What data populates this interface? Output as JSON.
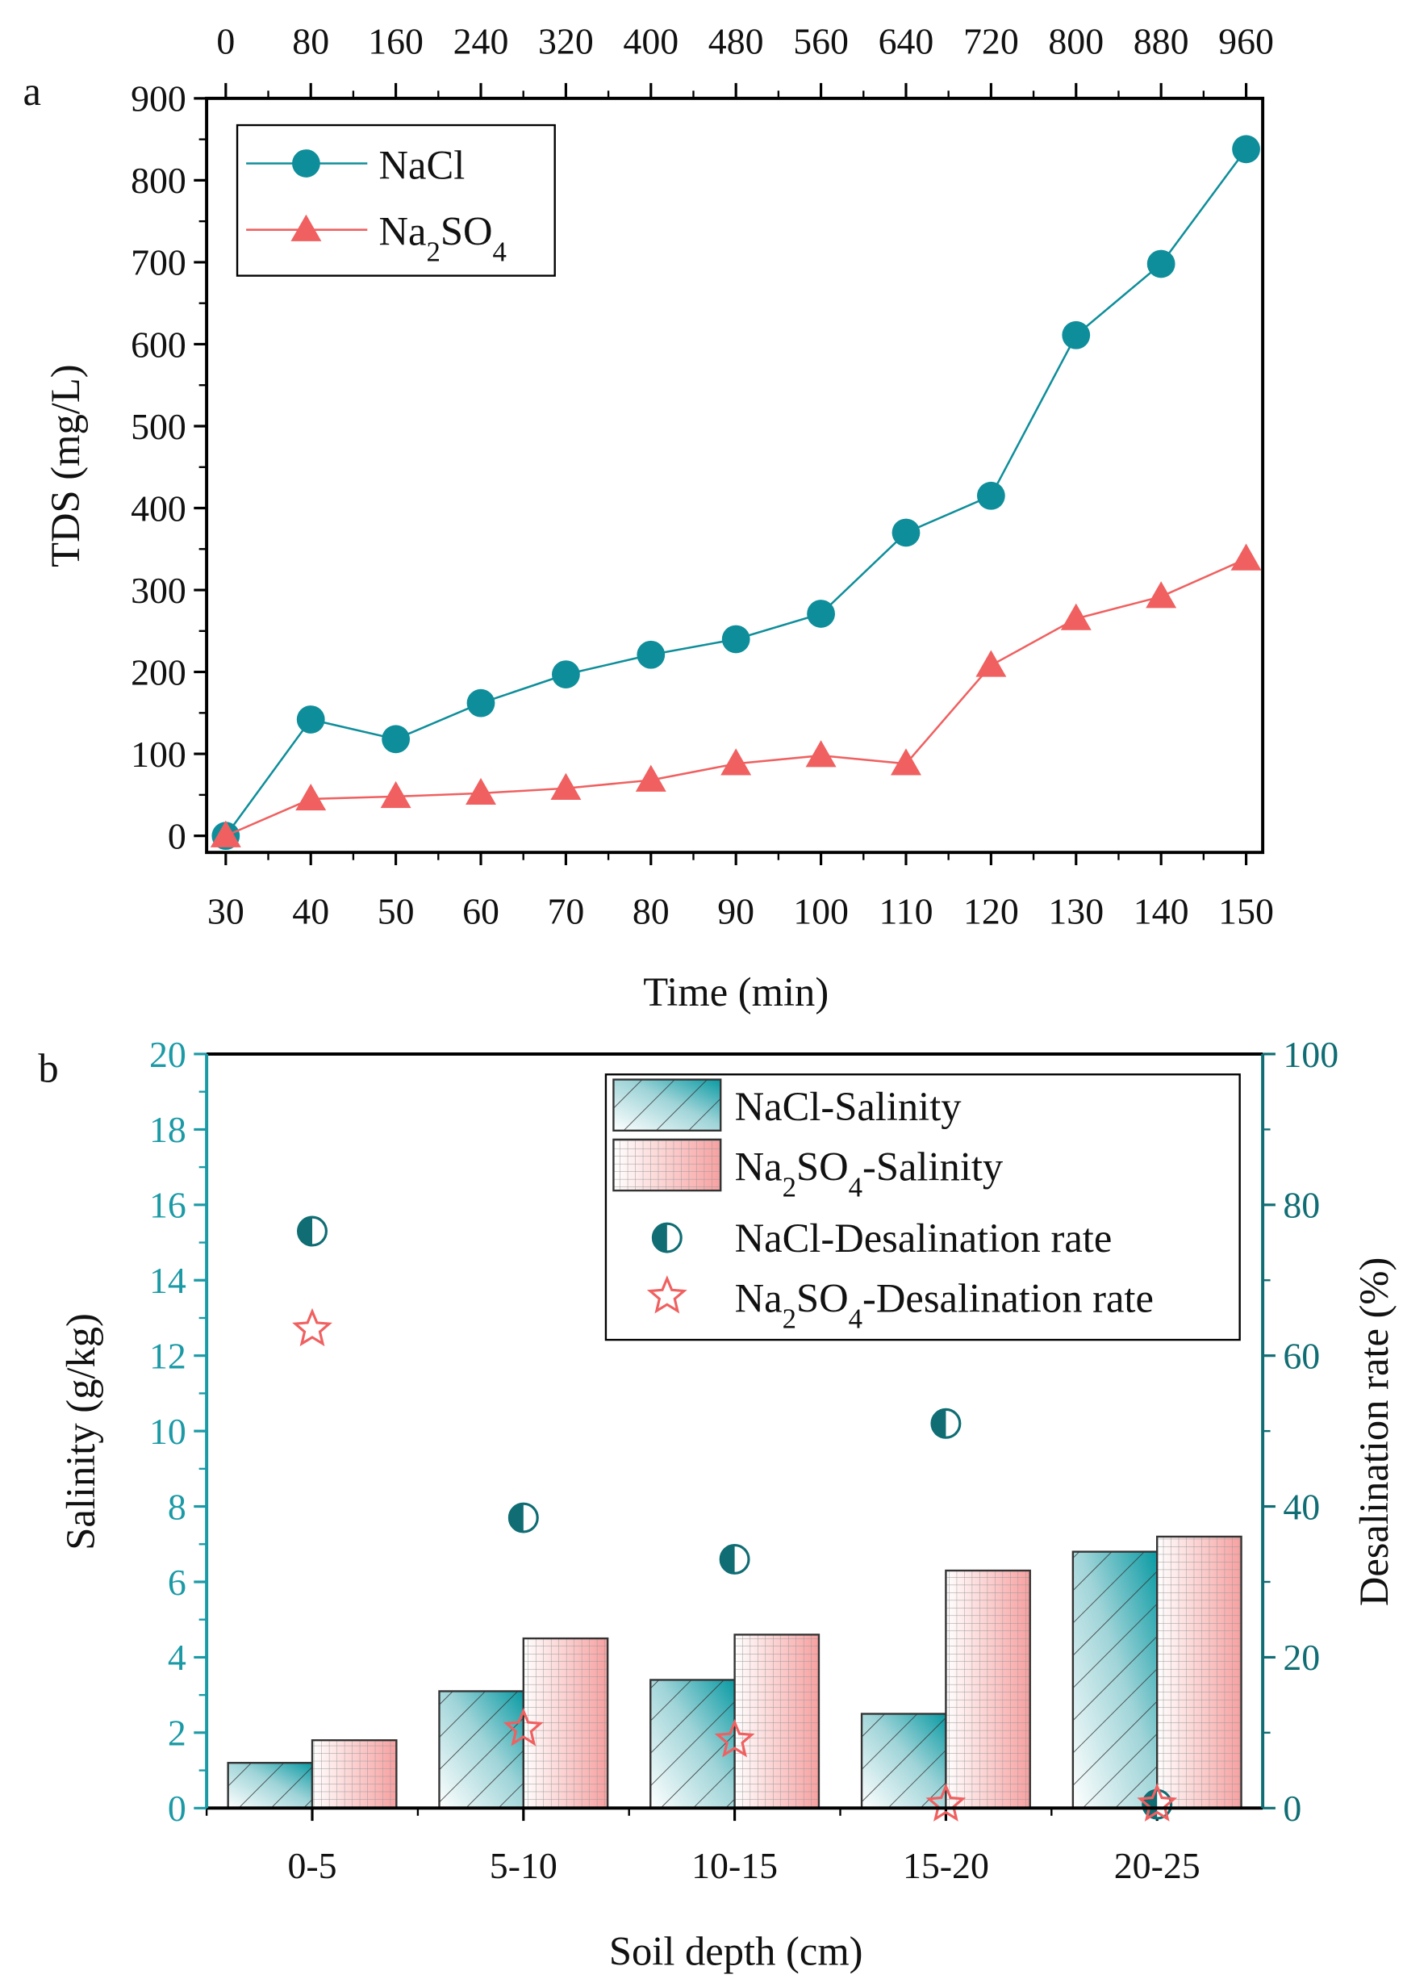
{
  "chart_data": [
    {
      "type": "line",
      "panel_label": "a",
      "xlabel": "Time (min)",
      "ylabel": "TDS (mg/L)",
      "x": [
        30,
        40,
        50,
        60,
        70,
        80,
        90,
        100,
        110,
        120,
        130,
        140,
        150
      ],
      "x_ticks": [
        "30",
        "40",
        "50",
        "60",
        "70",
        "80",
        "90",
        "100",
        "110",
        "120",
        "130",
        "140",
        "150"
      ],
      "top_x_ticks": [
        "0",
        "80",
        "160",
        "240",
        "320",
        "400",
        "480",
        "560",
        "640",
        "720",
        "800",
        "880",
        "960"
      ],
      "ylim": [
        0,
        900
      ],
      "y_ticks": [
        "0",
        "100",
        "200",
        "300",
        "400",
        "500",
        "600",
        "700",
        "800",
        "900"
      ],
      "legend_position": "top-left",
      "series": [
        {
          "name": "NaCl",
          "name_main": "NaCl",
          "name_sub": "",
          "name_tail": "",
          "color": "#0e8e9a",
          "marker": "circle",
          "values": [
            0,
            142,
            118,
            162,
            197,
            221,
            240,
            271,
            370,
            415,
            611,
            698,
            838
          ]
        },
        {
          "name": "Na2SO4",
          "name_main": "Na",
          "name_sub": "2",
          "name_tail": "SO",
          "name_sub2": "4",
          "color": "#f06060",
          "marker": "triangle",
          "values": [
            0,
            45,
            48,
            52,
            58,
            68,
            88,
            98,
            88,
            208,
            265,
            292,
            338
          ]
        }
      ]
    },
    {
      "type": "bar",
      "panel_label": "b",
      "xlabel": "Soil depth (cm)",
      "ylabel": "Salinity (g/kg)",
      "y2label": "Desalination rate (%)",
      "categories": [
        "0-5",
        "5-10",
        "10-15",
        "15-20",
        "20-25"
      ],
      "ylim": [
        0,
        20
      ],
      "y_ticks": [
        "0",
        "2",
        "4",
        "6",
        "8",
        "10",
        "12",
        "14",
        "16",
        "18",
        "20"
      ],
      "y2lim": [
        0,
        100
      ],
      "y2_ticks": [
        "0",
        "20",
        "40",
        "60",
        "80",
        "100"
      ],
      "legend_position": "top-right",
      "bar_series": [
        {
          "name": "NaCl-Salinity",
          "label_parts": [
            "NaCl-Salinity",
            "",
            ""
          ],
          "color": "#0e9aa4",
          "values": [
            1.2,
            3.1,
            3.4,
            2.5,
            6.8
          ]
        },
        {
          "name": "Na2SO4-Salinity",
          "label_parts": [
            "Na",
            "2",
            "SO",
            "4",
            "-Salinity"
          ],
          "color": "#f48a8a",
          "values": [
            1.8,
            4.5,
            4.6,
            6.3,
            7.2
          ]
        }
      ],
      "scatter_series": [
        {
          "name": "NaCl-Desalination rate",
          "label_parts": [
            "NaCl-Desalination rate"
          ],
          "color": "#0f6d73",
          "marker": "half-circle",
          "axis": "right",
          "values": [
            76.5,
            38.5,
            33,
            51,
            0.5
          ]
        },
        {
          "name": "Na2SO4-Desalination rate",
          "label_parts": [
            "Na",
            "2",
            "SO",
            "4",
            "-Desalination rate"
          ],
          "color": "#f06060",
          "marker": "star",
          "axis": "right",
          "values": [
            63.5,
            10.5,
            9,
            0.5,
            0.5
          ]
        }
      ]
    }
  ]
}
